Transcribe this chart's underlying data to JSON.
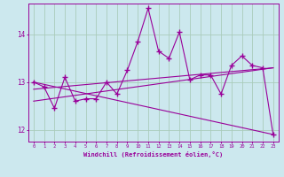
{
  "xlabel": "Windchill (Refroidissement éolien,°C)",
  "background_color": "#cce8ee",
  "grid_color": "#aaccbb",
  "line_color": "#990099",
  "xlim": [
    -0.5,
    23.5
  ],
  "ylim": [
    11.75,
    14.65
  ],
  "yticks": [
    12,
    13,
    14
  ],
  "xticks": [
    0,
    1,
    2,
    3,
    4,
    5,
    6,
    7,
    8,
    9,
    10,
    11,
    12,
    13,
    14,
    15,
    16,
    17,
    18,
    19,
    20,
    21,
    22,
    23
  ],
  "series1_x": [
    0,
    1,
    2,
    3,
    4,
    5,
    6,
    7,
    8,
    9,
    10,
    11,
    12,
    13,
    14,
    15,
    16,
    17,
    18,
    19,
    20,
    21,
    22,
    23
  ],
  "series1_y": [
    13.0,
    12.9,
    12.45,
    13.1,
    12.6,
    12.65,
    12.65,
    13.0,
    12.75,
    13.25,
    13.85,
    14.55,
    13.65,
    13.5,
    14.05,
    13.05,
    13.15,
    13.15,
    12.75,
    13.35,
    13.55,
    13.35,
    13.3,
    11.9
  ],
  "trendline1_x": [
    0,
    23
  ],
  "trendline1_y": [
    12.85,
    13.3
  ],
  "trendline2_x": [
    0,
    23
  ],
  "trendline2_y": [
    13.0,
    11.9
  ],
  "trendline3_x": [
    0,
    23
  ],
  "trendline3_y": [
    12.6,
    13.3
  ]
}
